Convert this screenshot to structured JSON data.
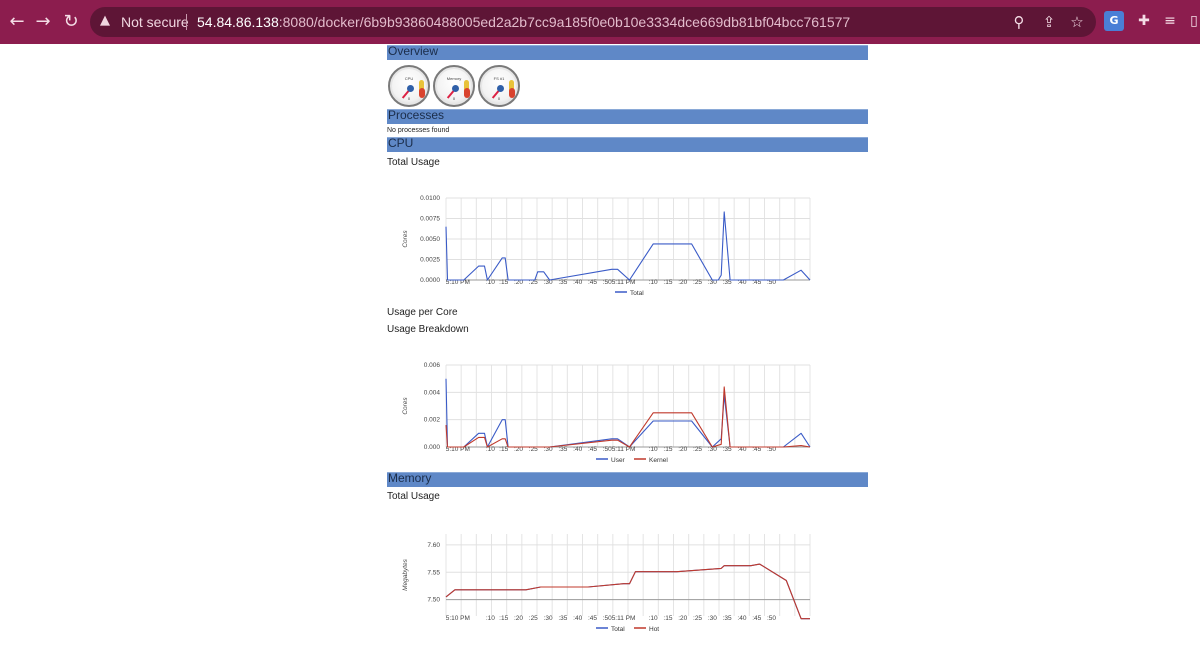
{
  "browser": {
    "security_label": "Not secure",
    "url_host": "54.84.86.138",
    "url_rest": ":8080/docker/6b9b93860488005ed2a2b7cc9a185f0e0b10e3334dce669db81bf04bcc761577",
    "accent": "#8c1d4e"
  },
  "page": {
    "sections": {
      "overview": "Overview",
      "processes": "Processes",
      "cpu": "CPU",
      "memory": "Memory"
    },
    "gauges": [
      {
        "label": "CPU",
        "min": "0"
      },
      {
        "label": "Memory",
        "min": "0"
      },
      {
        "label": "FS #1",
        "min": "0"
      }
    ],
    "processes_text": "No processes found",
    "cpu_total_title": "Total Usage",
    "cpu_per_core_title": "Usage per Core",
    "cpu_breakdown_title": "Usage Breakdown",
    "memory_total_title": "Total Usage"
  },
  "chart_data": [
    {
      "type": "line",
      "title": "Total Usage",
      "ylabel": "Cores",
      "ylim": [
        0,
        0.01
      ],
      "yticks": [
        "0.0100",
        "0.0075",
        "0.0050",
        "0.0025",
        "0.0000"
      ],
      "xticks": [
        "5:10 PM",
        ":10",
        ":15",
        ":20",
        ":25",
        ":30",
        ":35",
        ":40",
        ":45",
        ":50",
        "5:11 PM",
        ":10",
        ":15",
        ":20",
        ":25",
        ":30",
        ":35",
        ":40",
        ":45",
        ":50"
      ],
      "series": [
        {
          "name": "Total",
          "color": "#3a5bc7",
          "x": [
            0,
            0.5,
            6,
            11,
            13,
            14,
            19,
            20,
            21,
            30,
            31,
            33,
            35,
            56,
            58,
            62,
            70,
            83,
            90,
            91,
            92,
            93,
            94,
            96,
            114,
            120,
            123
          ],
          "y": [
            0.0065,
            0,
            0,
            0.0017,
            0.0017,
            0,
            0.0027,
            0.0027,
            0,
            0,
            0.001,
            0.001,
            0,
            0.0013,
            0.0013,
            0,
            0.0044,
            0.0044,
            0,
            0,
            0,
            0.0006,
            0.0083,
            0,
            0,
            0.0012,
            0
          ]
        }
      ]
    },
    {
      "type": "line",
      "title": "Usage Breakdown",
      "ylabel": "Cores",
      "ylim": [
        0,
        0.006
      ],
      "yticks": [
        "0.006",
        "0.004",
        "0.002",
        "0.000"
      ],
      "xticks": [
        "5:10 PM",
        ":10",
        ":15",
        ":20",
        ":25",
        ":30",
        ":35",
        ":40",
        ":45",
        ":50",
        "5:11 PM",
        ":10",
        ":15",
        ":20",
        ":25",
        ":30",
        ":35",
        ":40",
        ":45",
        ":50"
      ],
      "series": [
        {
          "name": "User",
          "color": "#3a5bc7",
          "x": [
            0,
            0.5,
            6,
            11,
            13,
            14,
            19,
            20,
            21,
            30,
            35,
            56,
            58,
            62,
            70,
            83,
            90,
            93,
            94,
            96,
            114,
            120,
            123
          ],
          "y": [
            0.005,
            0,
            0,
            0.001,
            0.001,
            0,
            0.002,
            0.002,
            0,
            0,
            0,
            0.0006,
            0.0006,
            0,
            0.0019,
            0.0019,
            0,
            0.0006,
            0.0038,
            0,
            0,
            0.001,
            0
          ]
        },
        {
          "name": "Kernel",
          "color": "#c0392b",
          "x": [
            0,
            0.5,
            6,
            11,
            13,
            14,
            19,
            20,
            21,
            30,
            35,
            56,
            58,
            62,
            70,
            83,
            90,
            93,
            94,
            96,
            114,
            120,
            123
          ],
          "y": [
            0.0016,
            0,
            0,
            0.0007,
            0.0007,
            0,
            0.0006,
            0.0006,
            0,
            0,
            0,
            0.0005,
            0.0005,
            0,
            0.0025,
            0.0025,
            0,
            0.0002,
            0.0044,
            0,
            0,
            0.0001,
            0
          ]
        }
      ]
    },
    {
      "type": "line",
      "title": "Total Usage",
      "ylabel": "Megabytes",
      "ylim": [
        7.47,
        7.62
      ],
      "yticks": [
        "7.60",
        "7.55",
        "7.50"
      ],
      "xticks": [
        "5:10 PM",
        ":10",
        ":15",
        ":20",
        ":25",
        ":30",
        ":35",
        ":40",
        ":45",
        ":50",
        "5:11 PM",
        ":10",
        ":15",
        ":20",
        ":25",
        ":30",
        ":35",
        ":40",
        ":45",
        ":50"
      ],
      "series": [
        {
          "name": "Total",
          "color": "#3a5bc7",
          "x": [
            0,
            3,
            27,
            32,
            48,
            60,
            62,
            64,
            78,
            93,
            94,
            103,
            106,
            115,
            120,
            123
          ],
          "y": [
            7.505,
            7.518,
            7.518,
            7.523,
            7.523,
            7.529,
            7.529,
            7.551,
            7.551,
            7.557,
            7.562,
            7.562,
            7.565,
            7.535,
            7.465,
            7.465
          ]
        },
        {
          "name": "Hot",
          "color": "#c0392b",
          "x": [
            0,
            3,
            27,
            32,
            48,
            60,
            62,
            64,
            78,
            93,
            94,
            103,
            106,
            115,
            120,
            123
          ],
          "y": [
            7.505,
            7.518,
            7.518,
            7.523,
            7.523,
            7.529,
            7.529,
            7.551,
            7.551,
            7.557,
            7.562,
            7.562,
            7.565,
            7.535,
            7.465,
            7.465
          ]
        }
      ]
    }
  ]
}
